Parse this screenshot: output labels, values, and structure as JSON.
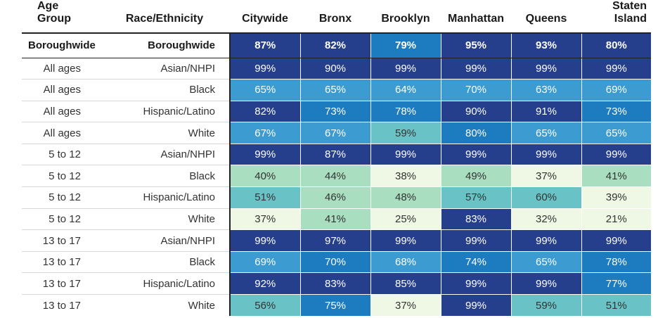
{
  "chart_data": {
    "type": "table",
    "columns": [
      "Age Group",
      "Race/Ethnicity",
      "Citywide",
      "Bronx",
      "Brooklyn",
      "Manhattan",
      "Queens",
      "Staten Island"
    ],
    "rows": [
      {
        "age": "Boroughwide",
        "race": "Boroughwide",
        "values": [
          "87%",
          "82%",
          "79%",
          "95%",
          "93%",
          "80%"
        ],
        "colors": [
          "#263f8c",
          "#263f8c",
          "#1d7bc0",
          "#263f8c",
          "#263f8c",
          "#263f8c"
        ]
      },
      {
        "age": "All ages",
        "race": "Asian/NHPI",
        "values": [
          "99%",
          "90%",
          "99%",
          "99%",
          "99%",
          "99%"
        ],
        "colors": [
          "#263f8c",
          "#263f8c",
          "#263f8c",
          "#263f8c",
          "#263f8c",
          "#263f8c"
        ]
      },
      {
        "age": "All ages",
        "race": "Black",
        "values": [
          "65%",
          "65%",
          "64%",
          "70%",
          "63%",
          "69%"
        ],
        "colors": [
          "#3c9bd0",
          "#3c9bd0",
          "#3c9bd0",
          "#3c9bd0",
          "#3c9bd0",
          "#3c9bd0"
        ]
      },
      {
        "age": "All ages",
        "race": "Hispanic/Latino",
        "values": [
          "82%",
          "73%",
          "78%",
          "90%",
          "91%",
          "73%"
        ],
        "colors": [
          "#263f8c",
          "#1d7bc0",
          "#1d7bc0",
          "#263f8c",
          "#263f8c",
          "#1d7bc0"
        ]
      },
      {
        "age": "All ages",
        "race": "White",
        "values": [
          "67%",
          "67%",
          "59%",
          "80%",
          "65%",
          "65%"
        ],
        "colors": [
          "#3c9bd0",
          "#3c9bd0",
          "#69c3c6",
          "#1d7bc0",
          "#3c9bd0",
          "#3c9bd0"
        ]
      },
      {
        "age": "5 to 12",
        "race": "Asian/NHPI",
        "values": [
          "99%",
          "87%",
          "99%",
          "99%",
          "99%",
          "99%"
        ],
        "colors": [
          "#263f8c",
          "#263f8c",
          "#263f8c",
          "#263f8c",
          "#263f8c",
          "#263f8c"
        ]
      },
      {
        "age": "5 to 12",
        "race": "Black",
        "values": [
          "40%",
          "44%",
          "38%",
          "49%",
          "37%",
          "41%"
        ],
        "colors": [
          "#a9dfc0",
          "#a9dfc0",
          "#eef8e4",
          "#a9dfc0",
          "#eef8e4",
          "#a9dfc0"
        ]
      },
      {
        "age": "5 to 12",
        "race": "Hispanic/Latino",
        "values": [
          "51%",
          "46%",
          "48%",
          "57%",
          "60%",
          "39%"
        ],
        "colors": [
          "#69c3c6",
          "#a9dfc0",
          "#a9dfc0",
          "#69c3c6",
          "#69c3c6",
          "#eef8e4"
        ]
      },
      {
        "age": "5 to 12",
        "race": "White",
        "values": [
          "37%",
          "41%",
          "25%",
          "83%",
          "32%",
          "21%"
        ],
        "colors": [
          "#eef8e4",
          "#a9dfc0",
          "#eef8e4",
          "#263f8c",
          "#eef8e4",
          "#eef8e4"
        ]
      },
      {
        "age": "13 to 17",
        "race": "Asian/NHPI",
        "values": [
          "99%",
          "97%",
          "99%",
          "99%",
          "99%",
          "99%"
        ],
        "colors": [
          "#263f8c",
          "#263f8c",
          "#263f8c",
          "#263f8c",
          "#263f8c",
          "#263f8c"
        ]
      },
      {
        "age": "13 to 17",
        "race": "Black",
        "values": [
          "69%",
          "70%",
          "68%",
          "74%",
          "65%",
          "78%"
        ],
        "colors": [
          "#3c9bd0",
          "#1d7bc0",
          "#3c9bd0",
          "#1d7bc0",
          "#3c9bd0",
          "#1d7bc0"
        ]
      },
      {
        "age": "13 to 17",
        "race": "Hispanic/Latino",
        "values": [
          "92%",
          "83%",
          "85%",
          "99%",
          "99%",
          "77%"
        ],
        "colors": [
          "#263f8c",
          "#263f8c",
          "#263f8c",
          "#263f8c",
          "#263f8c",
          "#1d7bc0"
        ]
      },
      {
        "age": "13 to 17",
        "race": "White",
        "values": [
          "56%",
          "75%",
          "37%",
          "99%",
          "59%",
          "51%"
        ],
        "colors": [
          "#69c3c6",
          "#1d7bc0",
          "#eef8e4",
          "#263f8c",
          "#69c3c6",
          "#69c3c6"
        ]
      }
    ]
  },
  "legend_colors": {
    "darkest": "#263f8c",
    "dark": "#1d7bc0",
    "mid": "#3c9bd0",
    "teal": "#69c3c6",
    "light": "#a9dfc0",
    "lightest": "#eef8e4"
  }
}
